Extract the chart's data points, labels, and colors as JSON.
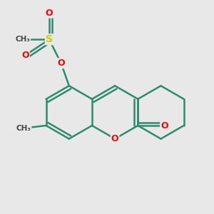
{
  "bg_color": "#e8e8e8",
  "bond_color": "#2d8c6e",
  "bond_width": 1.8,
  "atom_colors": {
    "O": "#ff0000",
    "S": "#cccc00"
  },
  "font_size": 9
}
